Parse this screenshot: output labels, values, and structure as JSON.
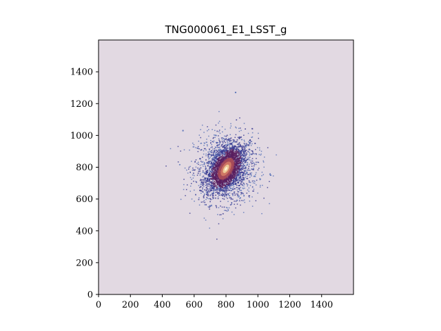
{
  "chart_data": {
    "type": "heatmap",
    "title": "TNG000061_E1_LSST_g",
    "xlabel": "",
    "ylabel": "",
    "xlim": [
      0,
      1600
    ],
    "ylim": [
      0,
      1600
    ],
    "x_ticks": [
      0,
      200,
      400,
      600,
      800,
      1000,
      1200,
      1400
    ],
    "y_ticks": [
      0,
      200,
      400,
      600,
      800,
      1000,
      1200,
      1400
    ],
    "x_tick_labels": [
      "0",
      "200",
      "400",
      "600",
      "800",
      "1000",
      "1200",
      "1400"
    ],
    "y_tick_labels": [
      "0",
      "200",
      "400",
      "600",
      "800",
      "1000",
      "1200",
      "1400"
    ],
    "grid": false,
    "colormap": "twilight_shifted",
    "background_color": "#e2d9e2",
    "source": {
      "center": [
        800,
        790
      ],
      "core_sigma": [
        35,
        70
      ],
      "halo_sigma": [
        100,
        110
      ],
      "position_angle_deg": 30,
      "isolated_points": [
        [
          860,
          1270
        ],
        [
          530,
          1030
        ],
        [
          1080,
          750
        ]
      ]
    },
    "colors": {
      "core": "#f2d9a0",
      "inner": "#c05a55",
      "mid": "#5a1e5e",
      "outer": "#3a3a90",
      "halo": "#5a74b8"
    }
  }
}
